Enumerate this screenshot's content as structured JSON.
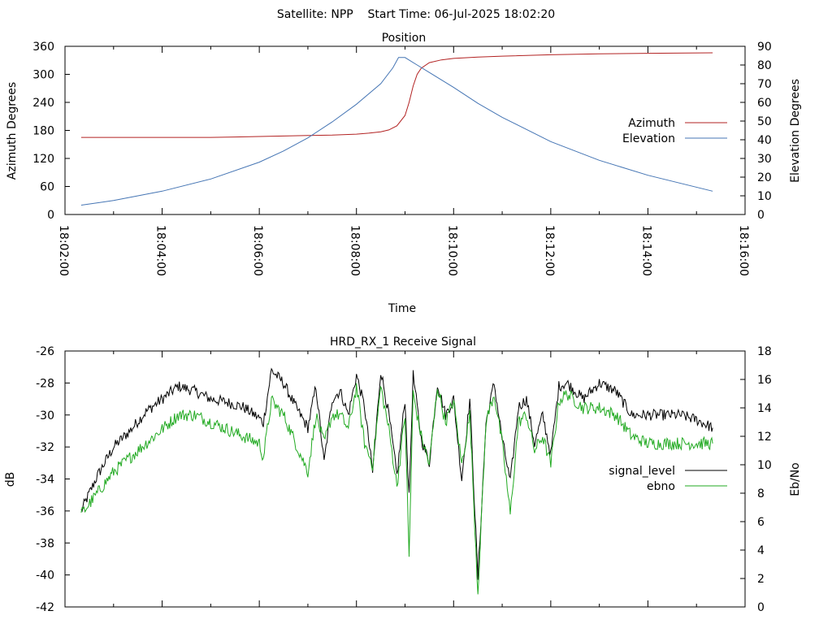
{
  "figure": {
    "title": "Satellite: NPP    Start Time: 06-Jul-2025 18:02:20"
  },
  "chart_data": [
    {
      "type": "line",
      "title": "Position",
      "xlabel": "Time",
      "ylabel": "Azimuth Degrees",
      "y2label": "Elevation Degrees",
      "x_ticks": [
        "18:02:00",
        "18:04:00",
        "18:06:00",
        "18:08:00",
        "18:10:00",
        "18:12:00",
        "18:14:00",
        "18:16:00"
      ],
      "xlim": [
        "18:02:00",
        "18:16:00"
      ],
      "ylim": [
        0,
        360
      ],
      "y_ticks": [
        "0",
        "60",
        "120",
        "180",
        "240",
        "300",
        "360"
      ],
      "y2lim": [
        0,
        90
      ],
      "y2_ticks": [
        "0",
        "10",
        "20",
        "30",
        "40",
        "50",
        "60",
        "70",
        "80",
        "90"
      ],
      "legend_position": "right",
      "grid": false,
      "series": [
        {
          "name": "Azimuth",
          "axis": "y",
          "color": "#b22222",
          "x": [
            "18:02:20",
            "18:03:00",
            "18:04:00",
            "18:05:00",
            "18:05:30",
            "18:06:00",
            "18:06:30",
            "18:07:00",
            "18:07:30",
            "18:08:00",
            "18:08:15",
            "18:08:30",
            "18:08:40",
            "18:08:50",
            "18:09:00",
            "18:09:05",
            "18:09:10",
            "18:09:15",
            "18:09:20",
            "18:09:30",
            "18:09:45",
            "18:10:00",
            "18:10:30",
            "18:11:00",
            "18:12:00",
            "18:13:00",
            "18:14:00",
            "18:15:20"
          ],
          "values": [
            165,
            165,
            165,
            165,
            166,
            167,
            168,
            169,
            170,
            172,
            174,
            177,
            181,
            190,
            212,
            240,
            275,
            300,
            313,
            325,
            331,
            334,
            337,
            339,
            342,
            344,
            345,
            346
          ]
        },
        {
          "name": "Elevation",
          "axis": "y2",
          "color": "#4575b4",
          "x": [
            "18:02:20",
            "18:03:00",
            "18:04:00",
            "18:05:00",
            "18:06:00",
            "18:06:30",
            "18:07:00",
            "18:07:30",
            "18:08:00",
            "18:08:30",
            "18:08:45",
            "18:08:52",
            "18:09:00",
            "18:09:15",
            "18:09:30",
            "18:10:00",
            "18:10:30",
            "18:11:00",
            "18:12:00",
            "18:13:00",
            "18:14:00",
            "18:15:20"
          ],
          "values": [
            5,
            7.5,
            12.5,
            19,
            28,
            34,
            41,
            49.5,
            59,
            70,
            78.5,
            84,
            84,
            80,
            76,
            68,
            59.5,
            52,
            39,
            29,
            21,
            12.5
          ]
        }
      ]
    },
    {
      "type": "line",
      "title": "HRD_RX_1 Receive Signal",
      "xlabel": "",
      "ylabel": "dB",
      "y2label": "Eb/No",
      "xlim": [
        "18:02:00",
        "18:16:00"
      ],
      "ylim": [
        -42,
        -26
      ],
      "y_ticks": [
        "-26",
        "-28",
        "-30",
        "-32",
        "-34",
        "-36",
        "-38",
        "-40",
        "-42"
      ],
      "y2lim": [
        0,
        18
      ],
      "y2_ticks": [
        "0",
        "2",
        "4",
        "6",
        "8",
        "10",
        "12",
        "14",
        "16",
        "18"
      ],
      "legend_position": "right",
      "grid": false,
      "series": [
        {
          "name": "signal_level",
          "axis": "y",
          "color": "#000000",
          "x": [
            "18:02:20",
            "18:02:40",
            "18:03:00",
            "18:03:20",
            "18:03:40",
            "18:04:00",
            "18:04:20",
            "18:04:40",
            "18:05:00",
            "18:05:20",
            "18:05:40",
            "18:06:00",
            "18:06:05",
            "18:06:15",
            "18:06:30",
            "18:06:45",
            "18:07:00",
            "18:07:10",
            "18:07:20",
            "18:07:30",
            "18:07:40",
            "18:07:50",
            "18:08:00",
            "18:08:10",
            "18:08:20",
            "18:08:30",
            "18:08:40",
            "18:08:50",
            "18:09:00",
            "18:09:05",
            "18:09:10",
            "18:09:20",
            "18:09:30",
            "18:09:40",
            "18:09:50",
            "18:10:00",
            "18:10:10",
            "18:10:20",
            "18:10:30",
            "18:10:40",
            "18:10:50",
            "18:11:00",
            "18:11:10",
            "18:11:20",
            "18:11:30",
            "18:11:40",
            "18:11:50",
            "18:12:00",
            "18:12:10",
            "18:12:20",
            "18:12:40",
            "18:13:00",
            "18:13:20",
            "18:13:40",
            "18:14:00",
            "18:14:20",
            "18:14:40",
            "18:15:00",
            "18:15:20"
          ],
          "values": [
            -36,
            -33.8,
            -32,
            -31,
            -29.8,
            -29,
            -28.2,
            -28.5,
            -29,
            -29.2,
            -29.5,
            -30.2,
            -30.5,
            -27.2,
            -28,
            -29.5,
            -30.8,
            -28.2,
            -33,
            -29,
            -28.5,
            -30,
            -27.5,
            -29.5,
            -33.6,
            -27.2,
            -30,
            -33.8,
            -29,
            -35.2,
            -27.5,
            -31.5,
            -33,
            -28,
            -30,
            -29,
            -34,
            -29,
            -40.2,
            -30.5,
            -28,
            -31.5,
            -34.2,
            -29.5,
            -29,
            -31.8,
            -30,
            -32.5,
            -28.2,
            -28,
            -29,
            -28,
            -28.5,
            -30,
            -30,
            -30,
            -30,
            -30.3,
            -30.8
          ]
        },
        {
          "name": "ebno",
          "axis": "y2",
          "color": "#22aa22",
          "x": [
            "18:02:20",
            "18:02:40",
            "18:03:00",
            "18:03:20",
            "18:03:40",
            "18:04:00",
            "18:04:20",
            "18:04:40",
            "18:05:00",
            "18:05:20",
            "18:05:40",
            "18:06:00",
            "18:06:05",
            "18:06:15",
            "18:06:30",
            "18:06:45",
            "18:07:00",
            "18:07:10",
            "18:07:20",
            "18:07:30",
            "18:07:40",
            "18:07:50",
            "18:08:00",
            "18:08:10",
            "18:08:20",
            "18:08:30",
            "18:08:40",
            "18:08:50",
            "18:09:00",
            "18:09:05",
            "18:09:10",
            "18:09:20",
            "18:09:30",
            "18:09:40",
            "18:09:50",
            "18:10:00",
            "18:10:10",
            "18:10:20",
            "18:10:30",
            "18:10:40",
            "18:10:50",
            "18:11:00",
            "18:11:10",
            "18:11:20",
            "18:11:30",
            "18:11:40",
            "18:11:50",
            "18:12:00",
            "18:12:10",
            "18:12:20",
            "18:12:40",
            "18:13:00",
            "18:13:20",
            "18:13:40",
            "18:14:00",
            "18:14:20",
            "18:14:40",
            "18:15:00",
            "18:15:20"
          ],
          "values": [
            6.5,
            8,
            9.5,
            10.5,
            11.5,
            12.5,
            13.5,
            13.5,
            13,
            12.5,
            12,
            11.5,
            10.5,
            14.5,
            13.5,
            11.5,
            9.5,
            13.5,
            11.5,
            13.5,
            13.5,
            12.5,
            15.5,
            11.5,
            10,
            15.5,
            12.5,
            8.5,
            13.5,
            3.5,
            15,
            12,
            10,
            15.5,
            13,
            14.5,
            10,
            13.5,
            1,
            13,
            15,
            11.5,
            6.5,
            13,
            13.5,
            11,
            12,
            10,
            14.5,
            15,
            14,
            14,
            13.5,
            12,
            11.5,
            11.5,
            11.5,
            11.5,
            11.5
          ]
        }
      ]
    }
  ]
}
